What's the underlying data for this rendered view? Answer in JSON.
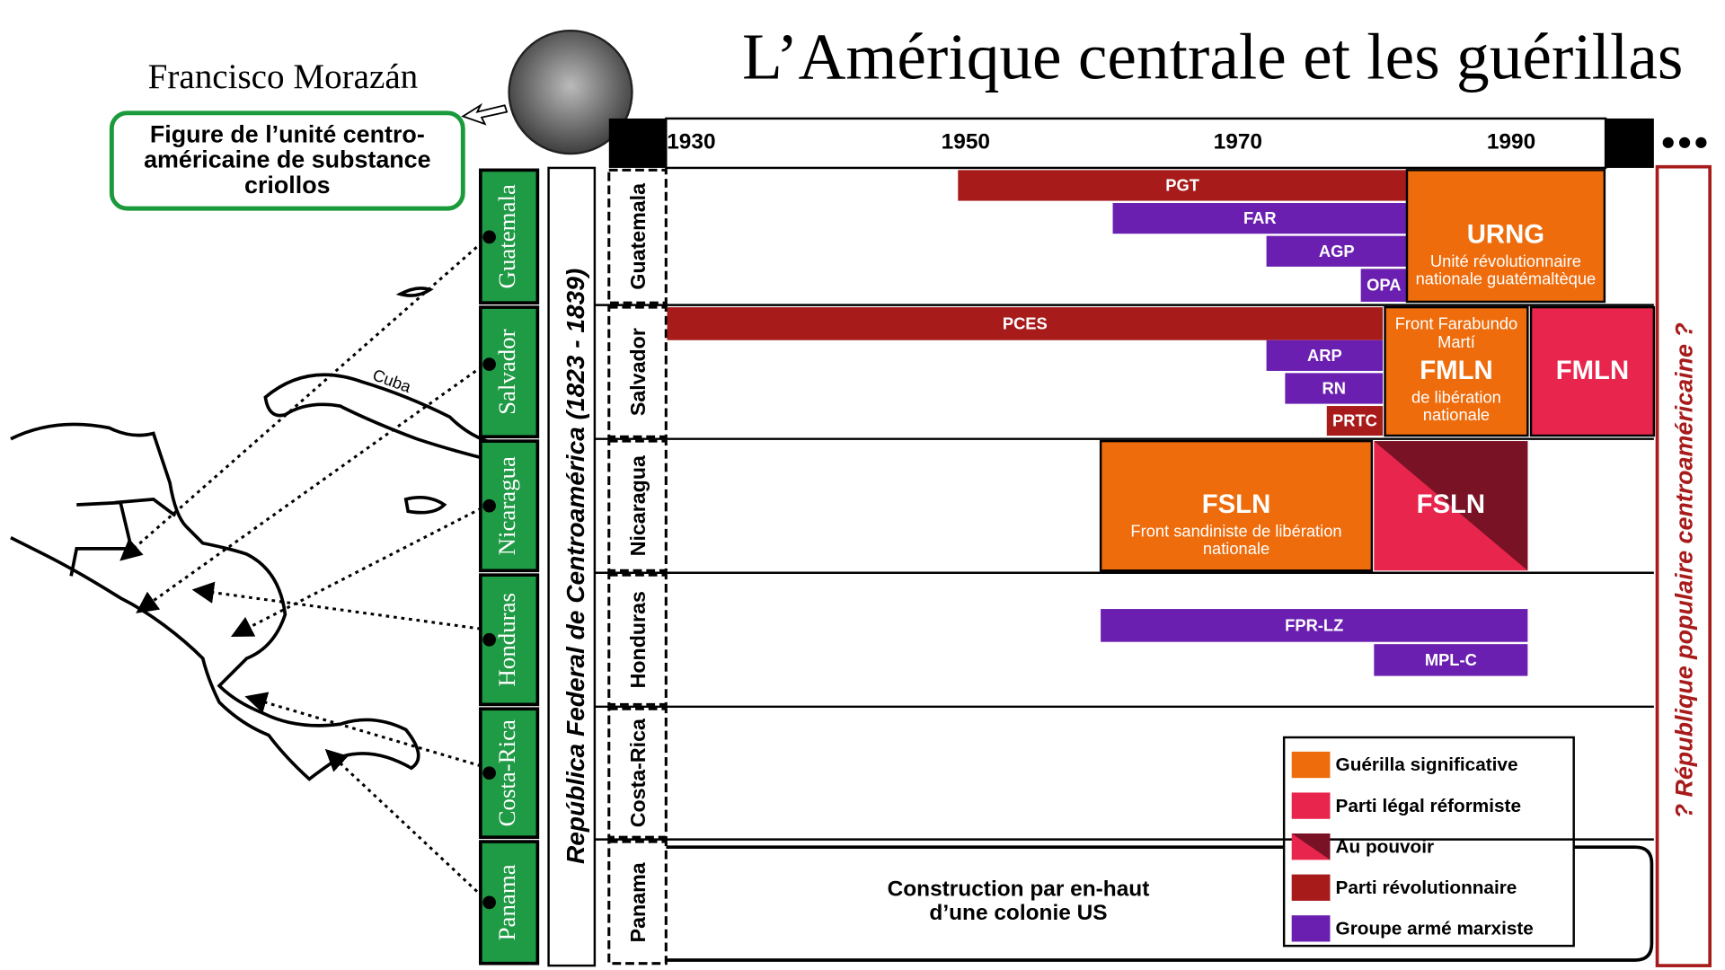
{
  "title": "L’Amérique centrale et les guérillas",
  "portrait": {
    "name": "Francisco Morazán",
    "caption": [
      "Figure de l’unité centro-",
      "américaine de substance",
      "criollos"
    ]
  },
  "map_label": "Cuba",
  "federation": "República Federal de Centroamérica (1823 - 1839)",
  "future": "? République populaire centroaméricaine ?",
  "countries": [
    "Guatemala",
    "Salvador",
    "Nicaragua",
    "Honduras",
    "Costa-Rica",
    "Panama"
  ],
  "years": [
    1930,
    1950,
    1970,
    1990
  ],
  "groups": [
    {
      "label": "PGT",
      "color": "#a81b1b"
    },
    {
      "label": "FAR",
      "color": "#6a1fb0"
    },
    {
      "label": "AGP",
      "color": "#6a1fb0"
    },
    {
      "label": "OPA",
      "color": "#6a1fb0"
    },
    {
      "label": "URNG",
      "lines": [
        "Unité révolutionnaire",
        "nationale guatémaltèque"
      ],
      "color": "#ee6c0c"
    },
    {
      "label": "PCES",
      "color": "#a81b1b"
    },
    {
      "label": "ARP",
      "color": "#6a1fb0"
    },
    {
      "label": "RN",
      "color": "#6a1fb0"
    },
    {
      "label": "PRTC",
      "color": "#a81b1b"
    },
    {
      "label": "FMLN",
      "pre_lines": [
        "Front Farabundo",
        "Martí"
      ],
      "lines": [
        "de libération",
        "nationale"
      ],
      "color": "#ee6c0c"
    },
    {
      "label": "FMLN",
      "color": "#e8254c"
    },
    {
      "label": "FSLN",
      "lines": [
        "Front sandiniste de libération",
        "nationale"
      ],
      "color": "#ee6c0c"
    },
    {
      "label": "FSLN",
      "colors": [
        "#e8254c",
        "#7a1226"
      ]
    },
    {
      "label": "FPR-LZ",
      "color": "#6a1fb0"
    },
    {
      "label": "MPL-C",
      "color": "#6a1fb0"
    }
  ],
  "panama_note": [
    "Construction par en-haut",
    "d’une colonie US"
  ],
  "legend": [
    {
      "label": "Guérilla significative",
      "color": "#ee6c0c"
    },
    {
      "label": "Parti légal réformiste",
      "color": "#e8254c"
    },
    {
      "label": "Au pouvoir",
      "colors": [
        "#e8254c",
        "#7a1226"
      ]
    },
    {
      "label": "Parti révolutionnaire",
      "color": "#a81b1b"
    },
    {
      "label": "Groupe armé marxiste",
      "color": "#6a1fb0"
    }
  ]
}
